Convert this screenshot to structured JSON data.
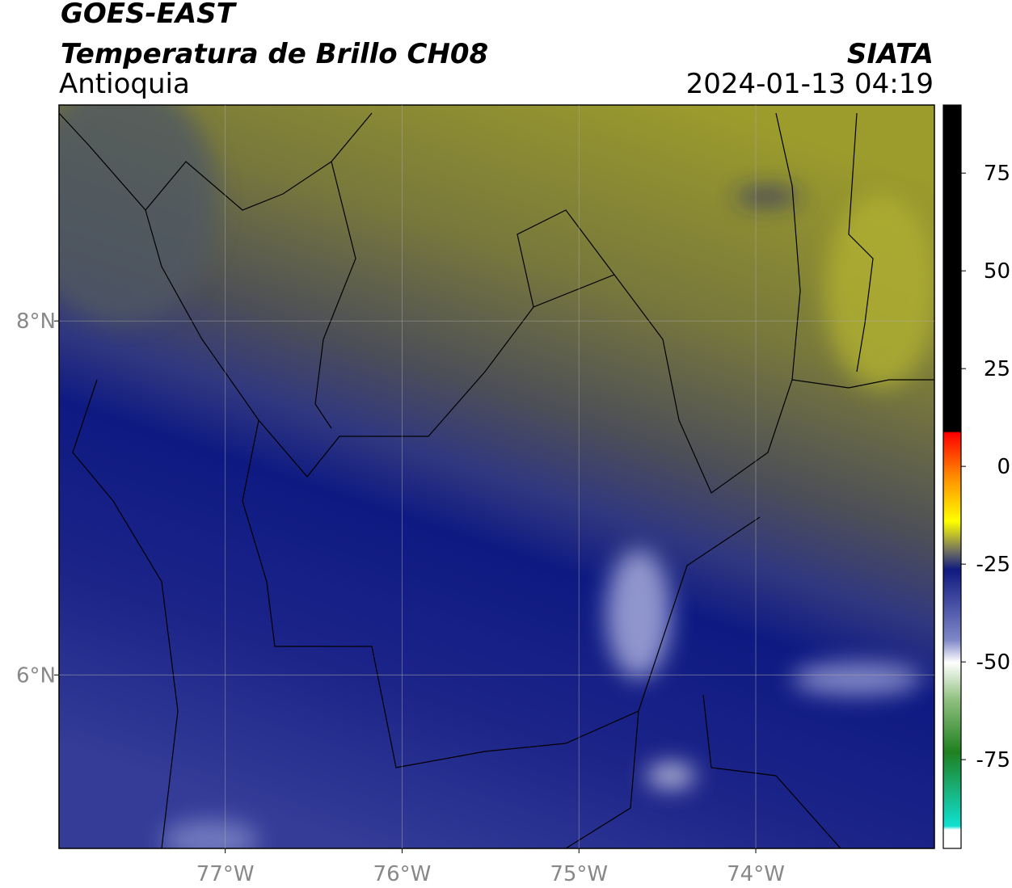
{
  "header": {
    "title": "GOES-EAST",
    "subtitle": "Temperatura de Brillo CH08",
    "region": "Antioquia",
    "source": "SIATA",
    "datetime": "2024-01-13 04:19"
  },
  "map": {
    "xlim": [
      -77.94,
      -72.99
    ],
    "ylim": [
      5.02,
      9.22
    ],
    "xticks": [
      {
        "value": -77,
        "label": "77°W"
      },
      {
        "value": -76,
        "label": "76°W"
      },
      {
        "value": -75,
        "label": "75°W"
      },
      {
        "value": -74,
        "label": "74°W"
      }
    ],
    "yticks": [
      {
        "value": 8,
        "label": "8°N"
      },
      {
        "value": 6,
        "label": "6°N"
      }
    ],
    "grid": true
  },
  "colorbar": {
    "lim": [
      -97.7,
      92.4
    ],
    "ticks": [
      75,
      50,
      25,
      0,
      -25,
      -50,
      -75
    ]
  }
}
